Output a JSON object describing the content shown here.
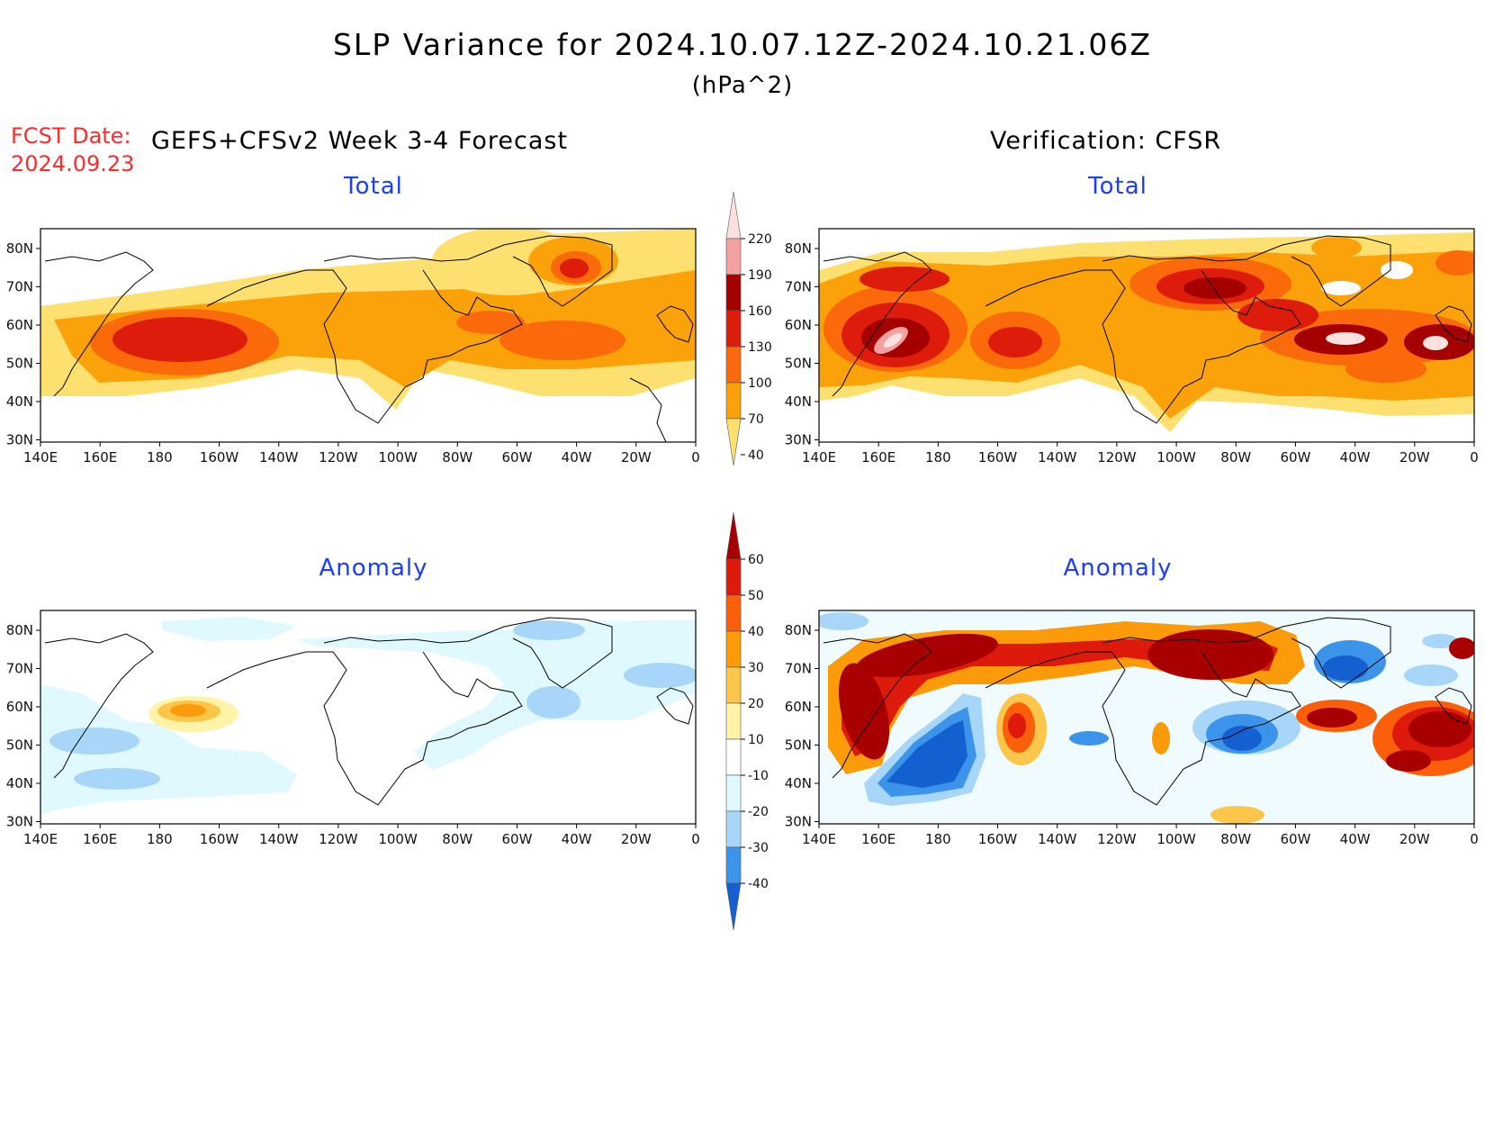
{
  "header": {
    "title": "SLP Variance for 2024.10.07.12Z-2024.10.21.06Z",
    "units": "(hPa^2)",
    "fcst_label": "FCST Date:",
    "fcst_date": "2024.09.23",
    "left_heading": "GEFS+CFSv2 Week 3-4 Forecast",
    "right_heading": "Verification: CFSR"
  },
  "panels": {
    "fcst_total": {
      "title": "Total"
    },
    "verif_total": {
      "title": "Total"
    },
    "fcst_anom": {
      "title": "Anomaly"
    },
    "verif_anom": {
      "title": "Anomaly"
    }
  },
  "axes": {
    "lat_labels": [
      "80N",
      "70N",
      "60N",
      "50N",
      "40N",
      "30N"
    ],
    "lon_labels": [
      "140E",
      "160E",
      "180",
      "160W",
      "140W",
      "120W",
      "100W",
      "80W",
      "60W",
      "40W",
      "20W",
      "0"
    ]
  },
  "colorbars": {
    "total": {
      "labels": [
        "220",
        "190",
        "160",
        "130",
        "100",
        "70",
        "40"
      ],
      "colors": [
        "#fde0e0",
        "#f2a0a0",
        "#a50000",
        "#dd1c0b",
        "#fa6a0a",
        "#fba20a",
        "#fde070"
      ]
    },
    "anomaly": {
      "labels": [
        "60",
        "50",
        "40",
        "30",
        "20",
        "10",
        "-10",
        "-20",
        "-30",
        "-40"
      ],
      "colors": [
        "#a80000",
        "#dd1a0b",
        "#fb5f0a",
        "#fb9b0a",
        "#fcc64a",
        "#fff3a8",
        "#ffffff",
        "#e0f8ff",
        "#a8d6f8",
        "#3c94ea",
        "#1560d0"
      ]
    }
  },
  "colors": {
    "title_blue": "#1c3cff",
    "fcst_red": "#ff2a2a"
  }
}
